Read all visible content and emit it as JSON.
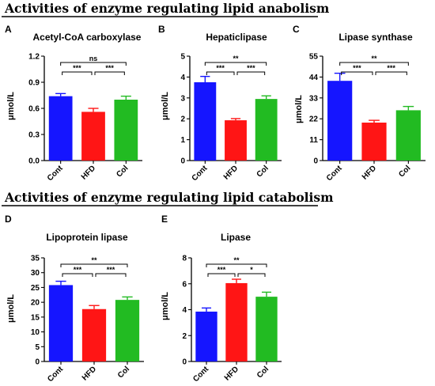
{
  "section_titles": [
    "Activities of enzyme regulating lipid anabolism",
    "Activities of enzyme  regulating lipid catabolism"
  ],
  "colors": {
    "Cont": "#1515ff",
    "HFD": "#ff1515",
    "Col": "#22bb22",
    "axis": "#000000"
  },
  "chart_data": [
    {
      "panel": "A",
      "type": "bar",
      "title": "Acetyl-CoA carboxylase",
      "ylabel": "μmol/L",
      "xlabel": "",
      "categories": [
        "Cont",
        "HFD",
        "Col"
      ],
      "values": [
        0.74,
        0.56,
        0.7
      ],
      "errors": [
        0.03,
        0.04,
        0.04
      ],
      "ylim": [
        0,
        1.2
      ],
      "yticks": [
        "0.0",
        "0.3",
        "0.6",
        "0.9",
        "1.2"
      ],
      "significance": [
        {
          "pair": [
            "Cont",
            "Col"
          ],
          "label": "ns",
          "level": 2
        },
        {
          "pair": [
            "Cont",
            "HFD"
          ],
          "label": "***",
          "level": 1
        },
        {
          "pair": [
            "HFD",
            "Col"
          ],
          "label": "***",
          "level": 1
        }
      ]
    },
    {
      "panel": "B",
      "type": "bar",
      "title": "Hepaticlipase",
      "ylabel": "μmol/L",
      "xlabel": "",
      "categories": [
        "Cont",
        "HFD",
        "Col"
      ],
      "values": [
        3.75,
        1.93,
        2.95
      ],
      "errors": [
        0.28,
        0.08,
        0.15
      ],
      "ylim": [
        0,
        5
      ],
      "yticks": [
        "0",
        "1",
        "2",
        "3",
        "4",
        "5"
      ],
      "significance": [
        {
          "pair": [
            "Cont",
            "Col"
          ],
          "label": "**",
          "level": 2
        },
        {
          "pair": [
            "Cont",
            "HFD"
          ],
          "label": "***",
          "level": 1
        },
        {
          "pair": [
            "HFD",
            "Col"
          ],
          "label": "***",
          "level": 1
        }
      ]
    },
    {
      "panel": "C",
      "type": "bar",
      "title": "Lipase synthase",
      "ylabel": "μmol/L",
      "xlabel": "",
      "categories": [
        "Cont",
        "HFD",
        "Col"
      ],
      "values": [
        42,
        20,
        26.5
      ],
      "errors": [
        4,
        1.2,
        2
      ],
      "ylim": [
        0,
        55
      ],
      "yticks": [
        "0",
        "11",
        "22",
        "33",
        "44",
        "55"
      ],
      "significance": [
        {
          "pair": [
            "Cont",
            "Col"
          ],
          "label": "**",
          "level": 2
        },
        {
          "pair": [
            "Cont",
            "HFD"
          ],
          "label": "***",
          "level": 1
        },
        {
          "pair": [
            "HFD",
            "Col"
          ],
          "label": "***",
          "level": 1
        }
      ]
    },
    {
      "panel": "D",
      "type": "bar",
      "title": "Lipoprotein lipase",
      "ylabel": "μmol/L",
      "xlabel": "",
      "categories": [
        "Cont",
        "HFD",
        "Col"
      ],
      "values": [
        25.8,
        17.7,
        20.8
      ],
      "errors": [
        1.3,
        1.2,
        1.0
      ],
      "ylim": [
        0,
        35
      ],
      "yticks": [
        "0",
        "5",
        "10",
        "15",
        "20",
        "25",
        "30",
        "35"
      ],
      "significance": [
        {
          "pair": [
            "Cont",
            "Col"
          ],
          "label": "**",
          "level": 2
        },
        {
          "pair": [
            "Cont",
            "HFD"
          ],
          "label": "***",
          "level": 1
        },
        {
          "pair": [
            "HFD",
            "Col"
          ],
          "label": "***",
          "level": 1
        }
      ]
    },
    {
      "panel": "E",
      "type": "bar",
      "title": "Lipase",
      "ylabel": "μmol/L",
      "xlabel": "",
      "categories": [
        "Cont",
        "HFD",
        "Col"
      ],
      "values": [
        3.85,
        6.05,
        5.0
      ],
      "errors": [
        0.28,
        0.3,
        0.35
      ],
      "ylim": [
        0,
        8
      ],
      "yticks": [
        "0",
        "2",
        "4",
        "6",
        "8"
      ],
      "significance": [
        {
          "pair": [
            "Cont",
            "Col"
          ],
          "label": "**",
          "level": 2
        },
        {
          "pair": [
            "Cont",
            "HFD"
          ],
          "label": "***",
          "level": 1
        },
        {
          "pair": [
            "HFD",
            "Col"
          ],
          "label": "*",
          "level": 1
        }
      ]
    }
  ]
}
